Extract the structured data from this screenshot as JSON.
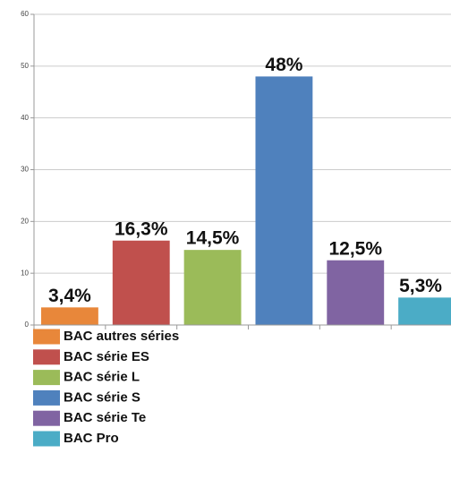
{
  "chart_data": {
    "type": "bar",
    "categories": [
      "BAC autres séries",
      "BAC série ES",
      "BAC série L",
      "BAC série S",
      "BAC série Te",
      "BAC Pro"
    ],
    "values": [
      3.4,
      16.3,
      14.5,
      48,
      12.5,
      5.3
    ],
    "value_labels": [
      "3,4%",
      "16,3%",
      "14,5%",
      "48%",
      "12,5%",
      "5,3%"
    ],
    "colors": [
      "#e8873a",
      "#c0504d",
      "#9bbb59",
      "#4f81bd",
      "#8064a2",
      "#4bacc6"
    ],
    "ylim": [
      0,
      60
    ],
    "yticks": [
      0,
      10,
      20,
      30,
      40,
      50,
      60
    ],
    "grid": true,
    "legend": "bottom"
  }
}
